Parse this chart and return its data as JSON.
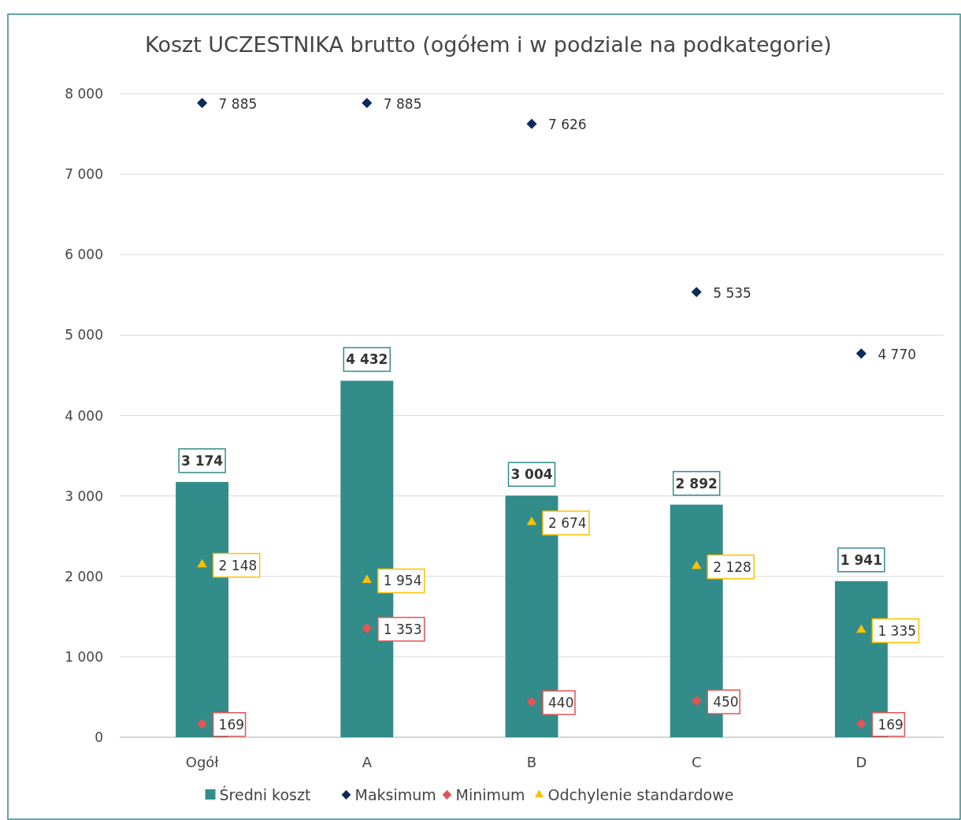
{
  "chart_data": {
    "type": "bar",
    "title": "Koszt UCZESTNIKA brutto (ogółem i w podziale na podkategorie)",
    "categories": [
      "Ogół",
      "A",
      "B",
      "C",
      "D"
    ],
    "series": [
      {
        "name": "Średni koszt",
        "color": "#328c8a",
        "values": [
          3174,
          4432,
          3004,
          2892,
          1941
        ]
      },
      {
        "name": "Maksimum",
        "type": "scatter",
        "marker": "diamond",
        "color": "#0e2a5c",
        "values": [
          7885,
          7885,
          7626,
          5535,
          4770
        ]
      },
      {
        "name": "Minimum",
        "type": "scatter",
        "marker": "diamond",
        "color": "#e05555",
        "values": [
          169,
          1353,
          440,
          450,
          169
        ]
      },
      {
        "name": "Odchylenie standardowe",
        "type": "scatter",
        "marker": "triangle",
        "color": "#ffc000",
        "values": [
          2148,
          1954,
          2674,
          2128,
          1335
        ]
      }
    ],
    "ylim": [
      0,
      8000
    ],
    "yticks": [
      {
        "value": 0,
        "label": "0"
      },
      {
        "value": 1000,
        "label": "1 000"
      },
      {
        "value": 2000,
        "label": "2 000"
      },
      {
        "value": 3000,
        "label": "3 000"
      },
      {
        "value": 4000,
        "label": "4 000"
      },
      {
        "value": 5000,
        "label": "5 000"
      },
      {
        "value": 6000,
        "label": "6 000"
      },
      {
        "value": 7000,
        "label": "7 000"
      },
      {
        "value": 8000,
        "label": "8 000"
      }
    ],
    "grid": "y",
    "legend": "bottom",
    "data_labels": true
  }
}
